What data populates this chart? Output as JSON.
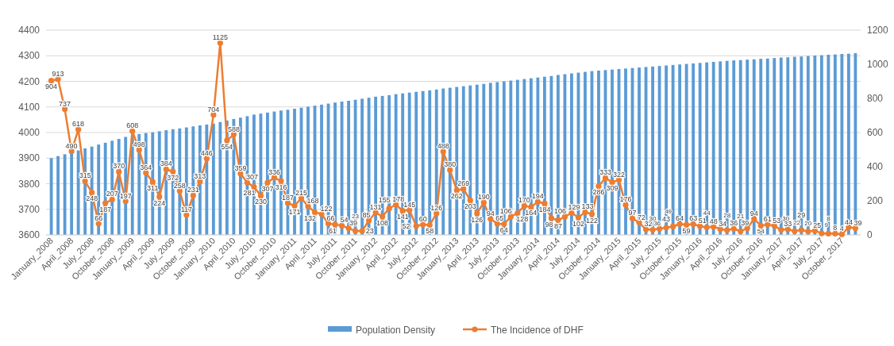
{
  "chart_data": {
    "type": "bar",
    "categories": [
      "January_2008",
      null,
      null,
      "April_2008",
      null,
      null,
      "July_2008",
      null,
      null,
      "October_2008",
      null,
      null,
      "January_2009",
      null,
      null,
      "April_2009",
      null,
      null,
      "July_2009",
      null,
      null,
      "October_2009",
      null,
      null,
      "January_2010",
      null,
      null,
      "April_2010",
      null,
      null,
      "July_2010",
      null,
      null,
      "October_2010",
      null,
      null,
      "January_2011",
      null,
      null,
      "April_2011",
      null,
      null,
      "July_2011",
      null,
      null,
      "October_2011",
      null,
      null,
      "January_2012",
      null,
      null,
      "April_2012",
      null,
      null,
      "July_2012",
      null,
      null,
      "October_2012",
      null,
      null,
      "January_2013",
      null,
      null,
      "April_2013",
      null,
      null,
      "July_2013",
      null,
      null,
      "October_2013",
      null,
      null,
      "January_2014",
      null,
      null,
      "April_2014",
      null,
      null,
      "July_2014",
      null,
      null,
      "October_2014",
      null,
      null,
      "January_2015",
      null,
      null,
      "April_2015",
      null,
      null,
      "July_2015",
      null,
      null,
      "October_2015",
      null,
      null,
      "January_2016",
      null,
      null,
      "April_2016",
      null,
      null,
      "July_2016",
      null,
      null,
      "October_2016",
      null,
      null,
      "January_2017",
      null,
      null,
      "April_2017",
      null,
      null,
      "July_2017",
      null,
      null,
      "October_2017",
      null,
      null
    ],
    "series": [
      {
        "name": "Population Density",
        "color": "#5b9bd5",
        "values": [
          3900,
          3908,
          3915,
          3923,
          3930,
          3938,
          3945,
          3953,
          3960,
          3968,
          3975,
          3983,
          3990,
          3994,
          3998,
          4001,
          4005,
          4009,
          4013,
          4016,
          4020,
          4024,
          4028,
          4031,
          4035,
          4041,
          4047,
          4053,
          4058,
          4064,
          4070,
          4074,
          4078,
          4082,
          4086,
          4089,
          4093,
          4097,
          4101,
          4105,
          4109,
          4113,
          4117,
          4121,
          4124,
          4128,
          4132,
          4136,
          4140,
          4143,
          4146,
          4150,
          4153,
          4156,
          4159,
          4162,
          4165,
          4168,
          4172,
          4175,
          4178,
          4181,
          4184,
          4187,
          4190,
          4194,
          4197,
          4200,
          4203,
          4206,
          4209,
          4212,
          4215,
          4218,
          4221,
          4225,
          4228,
          4231,
          4234,
          4237,
          4240,
          4242,
          4244,
          4246,
          4248,
          4250,
          4252,
          4254,
          4256,
          4258,
          4260,
          4262,
          4264,
          4266,
          4268,
          4270,
          4272,
          4274,
          4276,
          4278,
          4280,
          4282,
          4283,
          4285,
          4286,
          4288,
          4289,
          4291,
          4293,
          4294,
          4296,
          4297,
          4299,
          4301,
          4302,
          4304,
          4305,
          4307,
          4308,
          4310
        ]
      },
      {
        "name": "The Incidence of DHF",
        "type": "line",
        "axis": "y2",
        "color": "#ed7d31",
        "marker": "circle",
        "data_labels": true,
        "values": [
          904,
          913,
          737,
          490,
          618,
          315,
          248,
          66,
          187,
          207,
          370,
          197,
          608,
          498,
          364,
          311,
          224,
          384,
          372,
          258,
          117,
          231,
          313,
          446,
          704,
          1125,
          554,
          588,
          359,
          307,
          281,
          230,
          307,
          336,
          316,
          187,
          171,
          215,
          168,
          132,
          122,
          66,
          61,
          54,
          39,
          23,
          23,
          85,
          131,
          108,
          155,
          178,
          141,
          145,
          52,
          60,
          58,
          126,
          488,
          380,
          262,
          269,
          203,
          126,
          190,
          94,
          65,
          64,
          106,
          128,
          170,
          164,
          194,
          184,
          98,
          87,
          106,
          129,
          102,
          133,
          122,
          286,
          333,
          309,
          322,
          176,
          97,
          72,
          32,
          30,
          36,
          43,
          49,
          64,
          59,
          63,
          51,
          44,
          48,
          34,
          28,
          36,
          21,
          39,
          94,
          54,
          61,
          53,
          30,
          33,
          22,
          29,
          20,
          25,
          9,
          8,
          8,
          4,
          44,
          39
        ]
      }
    ],
    "ylim": [
      3600,
      4400
    ],
    "yticks": [
      3600,
      3700,
      3800,
      3900,
      4000,
      4100,
      4200,
      4300,
      4400
    ],
    "y2lim": [
      0,
      1200
    ],
    "y2ticks": [
      0,
      200,
      400,
      600,
      800,
      1000,
      1200
    ],
    "grid": "y",
    "legend": "bottom"
  }
}
